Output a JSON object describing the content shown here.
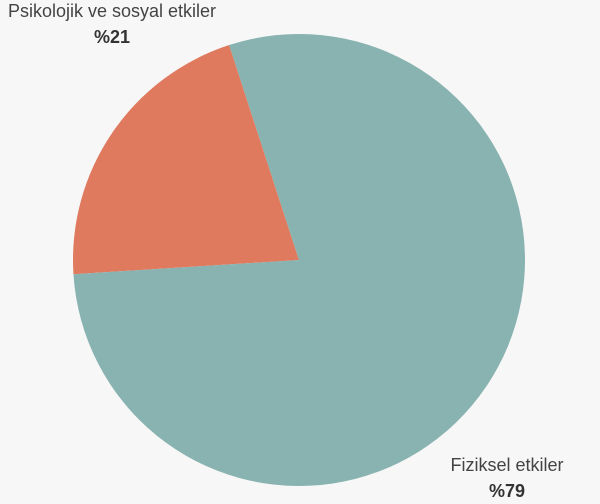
{
  "chart_data": {
    "type": "pie",
    "categories": [
      "Psikolojik ve sosyal etkiler",
      "Fiziksel etkiler"
    ],
    "values": [
      21,
      79
    ],
    "value_labels": [
      "%21",
      "%79"
    ],
    "colors": [
      "#e07a5f",
      "#88b3b0"
    ]
  }
}
